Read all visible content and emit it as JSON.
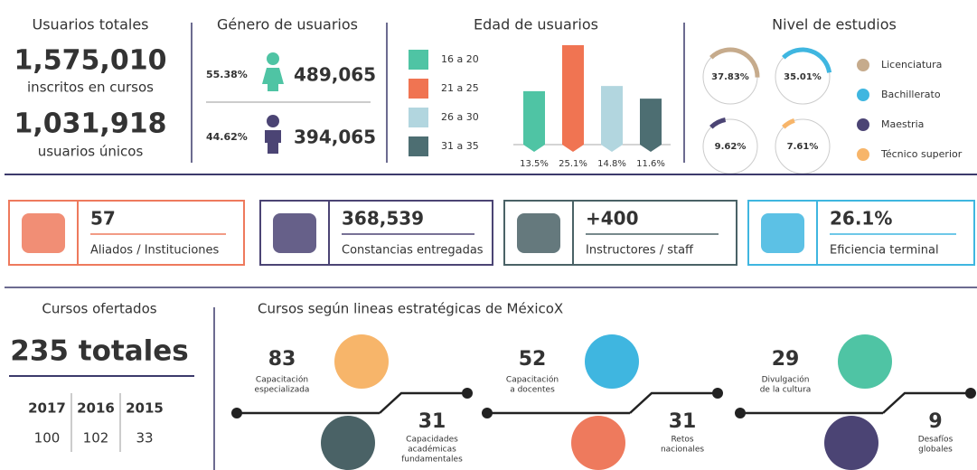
{
  "totals": {
    "title": "Usuarios totales",
    "enrolled": "1,575,010",
    "enrolled_label": "inscritos en cursos",
    "unique": "1,031,918",
    "unique_label": "usuarios únicos"
  },
  "gender": {
    "title": "Género de usuarios",
    "rows": [
      {
        "percent": "55.38%",
        "count": "489,065",
        "color": "#4fc4a4"
      },
      {
        "percent": "44.62%",
        "count": "394,065",
        "color": "#4b4474"
      }
    ]
  },
  "age": {
    "title": "Edad de usuarios",
    "groups": [
      {
        "name": "16 a 20",
        "color": "#4fc4a4",
        "value": 13.5,
        "label": "13.5%"
      },
      {
        "name": "21 a 25",
        "color": "#f07452",
        "value": 25.1,
        "label": "25.1%"
      },
      {
        "name": "26 a 30",
        "color": "#b2d6df",
        "value": 14.8,
        "label": "14.8%"
      },
      {
        "name": "31 a 35",
        "color": "#4d6e72",
        "value": 11.6,
        "label": "11.6%"
      }
    ]
  },
  "education": {
    "title": "Nivel de estudios",
    "levels": [
      {
        "name": "Licenciatura",
        "color": "#c6ab8c",
        "value": 37.83,
        "label": "37.83%"
      },
      {
        "name": "Bachillerato",
        "color": "#3fb6e0",
        "value": 35.01,
        "label": "35.01%"
      },
      {
        "name": "Maestria",
        "color": "#4b4474",
        "value": 9.62,
        "label": "9.62%"
      },
      {
        "name": "Técnico superior",
        "color": "#f7b56a",
        "value": 7.61,
        "label": "7.61%"
      }
    ]
  },
  "stats": [
    {
      "value": "57",
      "label": "Aliados / Instituciones",
      "color": "#ee7a5d"
    },
    {
      "value": "368,539",
      "label": "Constancias entregadas",
      "color": "#4b4474"
    },
    {
      "value": "+400",
      "label": "Instructores / staff",
      "color": "#4a6266"
    },
    {
      "value": "26.1%",
      "label": "Eficiencia terminal",
      "color": "#3fb6e0"
    }
  ],
  "courses": {
    "title": "Cursos ofertados",
    "total": "235 totales",
    "years": [
      {
        "year": "2017",
        "count": "100"
      },
      {
        "year": "2016",
        "count": "102"
      },
      {
        "year": "2015",
        "count": "33"
      }
    ]
  },
  "lines": {
    "title": "Cursos según lineas estratégicas de MéxicoX",
    "items": [
      {
        "count": "83",
        "label": [
          "Capacitación",
          "especializada"
        ],
        "color": "#f7b56a"
      },
      {
        "count": "31",
        "label": [
          "Capacidades",
          "académicas",
          "fundamentales"
        ],
        "color": "#4a6266"
      },
      {
        "count": "52",
        "label": [
          "Capacitación",
          "a docentes"
        ],
        "color": "#3fb6e0"
      },
      {
        "count": "31",
        "label": [
          "Retos",
          "nacionales"
        ],
        "color": "#ee7a5d"
      },
      {
        "count": "29",
        "label": [
          "Divulgación",
          "de la cultura"
        ],
        "color": "#4fc4a4"
      },
      {
        "count": "9",
        "label": [
          "Desafíos",
          "globales"
        ],
        "color": "#4b4474"
      }
    ]
  }
}
